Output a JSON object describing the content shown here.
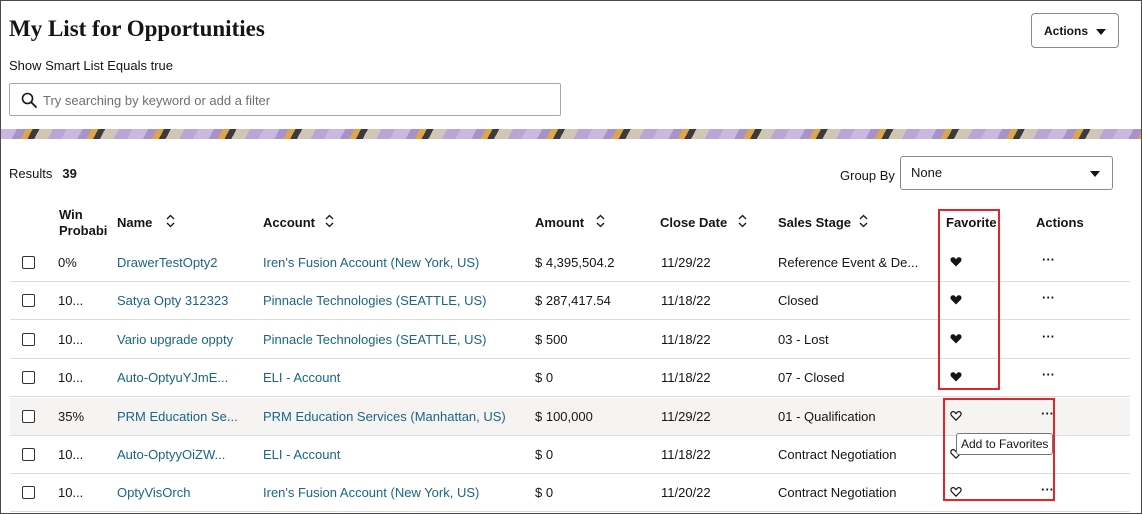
{
  "page": {
    "title": "My List for Opportunities",
    "subtitle": "Show Smart List Equals true",
    "actions_label": "Actions"
  },
  "search": {
    "placeholder": "Try searching by keyword or add a filter",
    "icon": "search-icon"
  },
  "results": {
    "label": "Results",
    "count": "39"
  },
  "group_by": {
    "label": "Group By",
    "value": "None"
  },
  "table": {
    "columns": {
      "win": [
        "Win",
        "Probabi"
      ],
      "name": "Name",
      "account": "Account",
      "amount": "Amount",
      "close_date": "Close Date",
      "sales_stage": "Sales Stage",
      "favorite": "Favorite",
      "actions": "Actions"
    },
    "rows": [
      {
        "win": "0%",
        "name": "DrawerTestOpty2",
        "account": "Iren's Fusion Account (New York, US)",
        "amount": "$ 4,395,504.2",
        "close_date": "11/29/22",
        "stage": "Reference Event & De...",
        "favorite": true
      },
      {
        "win": "10...",
        "name": "Satya Opty 312323",
        "account": "Pinnacle Technologies (SEATTLE, US)",
        "amount": "$ 287,417.54",
        "close_date": "11/18/22",
        "stage": "Closed",
        "favorite": true
      },
      {
        "win": "10...",
        "name": "Vario upgrade oppty",
        "account": "Pinnacle Technologies (SEATTLE, US)",
        "amount": "$ 500",
        "close_date": "11/18/22",
        "stage": "03 - Lost",
        "favorite": true
      },
      {
        "win": "10...",
        "name": "Auto-OptyuYJmE...",
        "account": "ELI - Account",
        "amount": "$ 0",
        "close_date": "11/18/22",
        "stage": "07 - Closed",
        "favorite": true
      },
      {
        "win": "35%",
        "name": "PRM Education Se...",
        "account": "PRM Education Services (Manhattan, US)",
        "amount": "$ 100,000",
        "close_date": "11/29/22",
        "stage": "01 - Qualification",
        "favorite": false
      },
      {
        "win": "10...",
        "name": "Auto-OptyyOiZW...",
        "account": "ELI - Account",
        "amount": "$ 0",
        "close_date": "11/18/22",
        "stage": "Contract Negotiation",
        "favorite": false
      },
      {
        "win": "10...",
        "name": "OptyVisOrch",
        "account": "Iren's Fusion Account (New York, US)",
        "amount": "$ 0",
        "close_date": "11/20/22",
        "stage": "Contract Negotiation",
        "favorite": false
      }
    ],
    "row_actions_glyph": "···"
  },
  "tooltip": {
    "text": "Add to Favorites"
  },
  "colors": {
    "link": "#1b6585",
    "highlight_box": "#e1262b",
    "hover_row": "#f5f4f2"
  }
}
